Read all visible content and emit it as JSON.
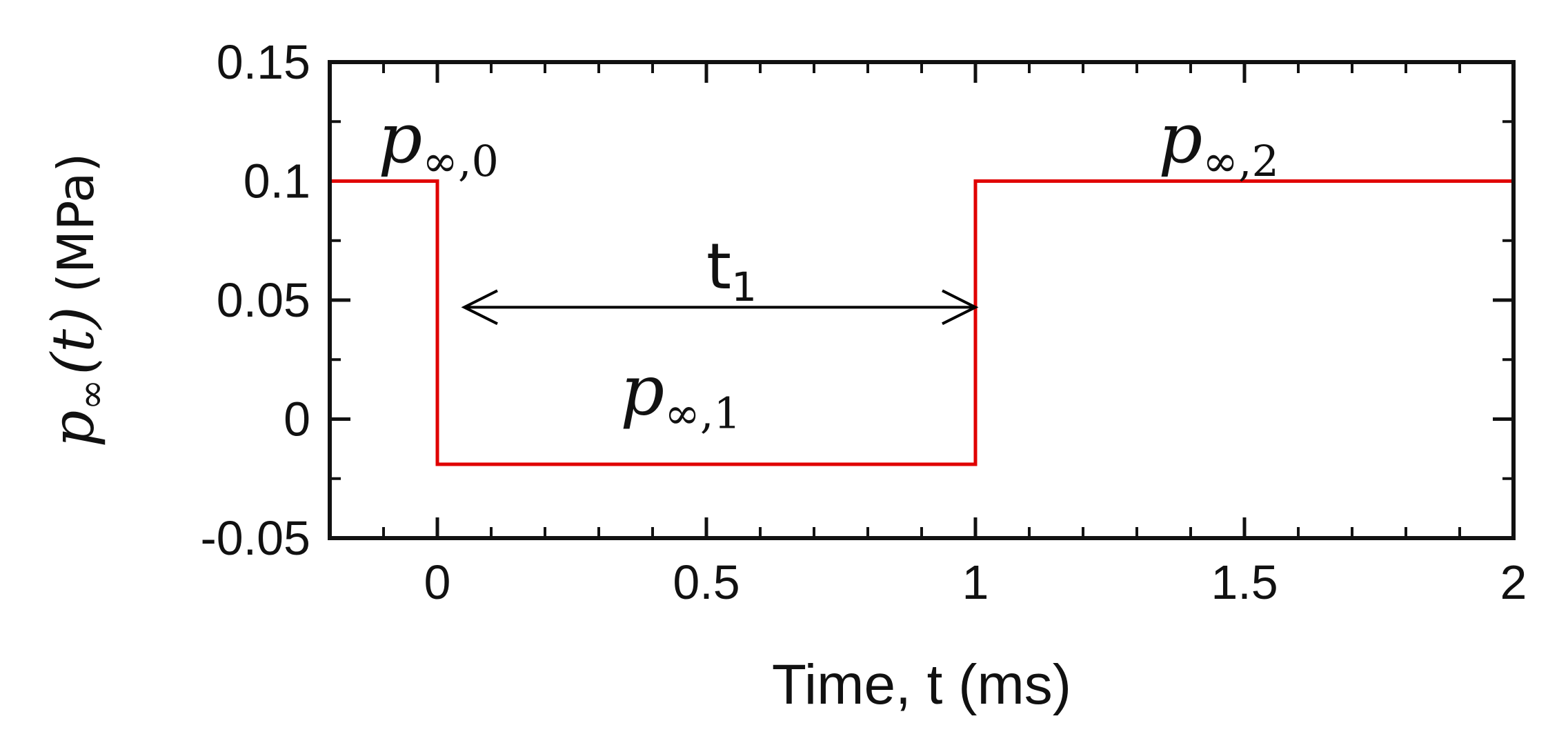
{
  "chart_data": {
    "type": "line",
    "xlabel": "Time, t (ms)",
    "ylabel": {
      "symbol": "p",
      "subscript": "∞",
      "argument": "(t)",
      "unit": "(MPa)"
    },
    "xlim": [
      -0.2,
      2.0
    ],
    "ylim": [
      -0.05,
      0.15
    ],
    "x_ticks": [
      0,
      0.5,
      1,
      1.5,
      2
    ],
    "x_tick_labels": [
      "0",
      "0.5",
      "1",
      "1.5",
      "2"
    ],
    "y_ticks": [
      -0.05,
      0,
      0.05,
      0.1,
      0.15
    ],
    "y_tick_labels": [
      "-0.05",
      "0",
      "0.05",
      "0.1",
      "0.15"
    ],
    "x_minor_step": 0.1,
    "y_minor_step": 0.025,
    "grid": false,
    "series": [
      {
        "color": "#e00000",
        "x": [
          -0.2,
          0,
          0,
          1,
          1,
          2
        ],
        "y": [
          0.1,
          0.1,
          -0.019,
          -0.019,
          0.1,
          0.1
        ]
      }
    ],
    "annotations": [
      {
        "id": "p0",
        "symbol": "p",
        "subscript": "∞,0",
        "x": -0.11,
        "y": 0.108
      },
      {
        "id": "p1",
        "symbol": "p",
        "subscript": "∞,1",
        "x": 0.34,
        "y": 0.002
      },
      {
        "id": "p2",
        "symbol": "p",
        "subscript": "∞,2",
        "x": 1.34,
        "y": 0.108
      },
      {
        "id": "t1",
        "text": "t",
        "subscript": "1",
        "x": 0.5,
        "y": 0.055
      }
    ],
    "arrow": {
      "x_start": 0.05,
      "x_end": 1.0,
      "y": 0.047,
      "style": "double-headed",
      "color": "#000000"
    }
  }
}
